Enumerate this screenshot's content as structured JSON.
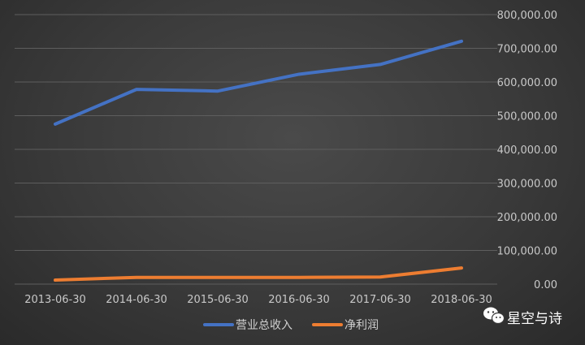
{
  "chart_data": {
    "type": "line",
    "categories": [
      "2013-06-30",
      "2014-06-30",
      "2015-06-30",
      "2016-06-30",
      "2017-06-30",
      "2018-06-30"
    ],
    "series": [
      {
        "name": "营业总收入",
        "color": "#4472c4",
        "values": [
          475000,
          578000,
          573000,
          623000,
          652000,
          721000
        ]
      },
      {
        "name": "净利润",
        "color": "#ed7d31",
        "values": [
          12000,
          20000,
          20000,
          20000,
          21000,
          48000
        ]
      }
    ],
    "yticks": [
      "0.00",
      "100,000.00",
      "200,000.00",
      "300,000.00",
      "400,000.00",
      "500,000.00",
      "600,000.00",
      "700,000.00",
      "800,000.00"
    ],
    "ylim": [
      0,
      800000
    ],
    "y_axis_side": "right",
    "grid": true,
    "legend_position": "bottom-center",
    "background_color": "#3a3a3a",
    "grid_color": "#5e5e5e"
  },
  "watermark": {
    "text": "星空与诗",
    "icon": "wechat-icon"
  }
}
